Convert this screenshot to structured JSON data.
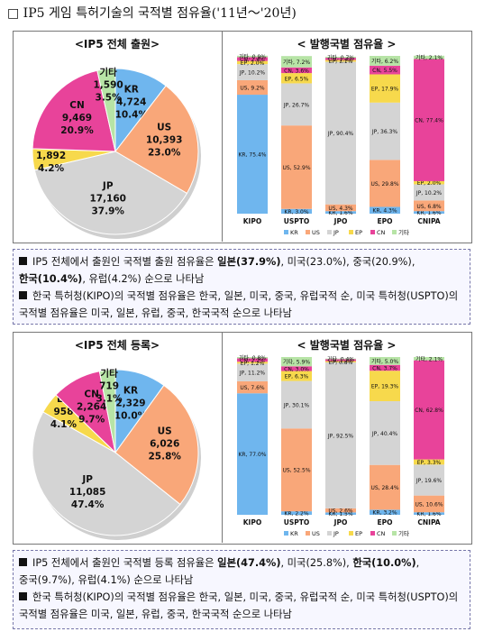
{
  "page_title": "□ IP5 게임 특허기술의 국적별 점유율('11년～'20년)",
  "chart_data": [
    {
      "type": "pie",
      "title": "<IP5 전체 출원>",
      "categories": [
        "KR",
        "US",
        "JP",
        "EP",
        "CN",
        "기타"
      ],
      "values": [
        4724,
        10393,
        17160,
        1892,
        9469,
        1590
      ],
      "percent_labels": [
        "10.4%",
        "23.0%",
        "37.9%",
        "4.2%",
        "20.9%",
        "3.5%"
      ],
      "value_labels": [
        "4,724",
        "10,393",
        "17,160",
        "1,892",
        "9,469",
        "1,590"
      ],
      "colors": [
        "#6fb6ee",
        "#f9a779",
        "#d4d4d4",
        "#f7d94c",
        "#e8439a",
        "#b7e4a6"
      ]
    },
    {
      "type": "bar",
      "stacked": true,
      "title": "< 발행국별 점유율 >",
      "categories": [
        "KIPO",
        "USPTO",
        "JPO",
        "EPO",
        "CNIPA"
      ],
      "series": [
        {
          "name": "KR",
          "values": [
            75.4,
            3.0,
            1.6,
            4.3,
            1.6
          ]
        },
        {
          "name": "US",
          "values": [
            9.2,
            52.9,
            4.3,
            29.8,
            6.8
          ]
        },
        {
          "name": "JP",
          "values": [
            10.2,
            26.7,
            90.4,
            36.3,
            10.2
          ]
        },
        {
          "name": "EP",
          "values": [
            2.0,
            6.5,
            1.1,
            17.9,
            2.0
          ]
        },
        {
          "name": "CN",
          "values": [
            2.4,
            3.6,
            1.4,
            5.5,
            77.4
          ]
        },
        {
          "name": "기타",
          "values": [
            0.9,
            7.2,
            0.7,
            6.2,
            2.1
          ]
        }
      ],
      "bar_labels": [
        [
          "KR, 75.4%",
          "US, 9.2%",
          "JP, 10.2%",
          "EP, 2.0%",
          "CN, 2.4%",
          "기타, 0.9%"
        ],
        [
          "KR, 3.0%",
          "US, 52.9%",
          "JP, 26.7%",
          "EP, 6.5%",
          "CN, 3.6%",
          "기타, 7.2%"
        ],
        [
          "KR, 1.6%",
          "US, 4.3%",
          "JP, 90.4%",
          "EP, 1.1%",
          "CN, 1.4%",
          "기타, 0.7%"
        ],
        [
          "KR, 4.3%",
          "US, 29.8%",
          "JP, 36.3%",
          "EP, 17.9%",
          "CN, 5.5%",
          "기타, 6.2%"
        ],
        [
          "KR, 1.6%",
          "US, 6.8%",
          "JP, 10.2%",
          "EP, 2.0%",
          "CN, 77.4%",
          "기타, 2.1%"
        ]
      ],
      "legend": [
        "KR",
        "US",
        "JP",
        "EP",
        "CN",
        "기타"
      ],
      "legend_position": "bottom",
      "colors": [
        "#6fb6ee",
        "#f9a779",
        "#d4d4d4",
        "#f7d94c",
        "#e8439a",
        "#b7e4a6"
      ]
    },
    {
      "type": "pie",
      "title": "<IP5 전체 등록>",
      "categories": [
        "KR",
        "US",
        "JP",
        "EP",
        "CN",
        "기타"
      ],
      "values": [
        2329,
        6026,
        11085,
        958,
        2264,
        719
      ],
      "percent_labels": [
        "10.0%",
        "25.8%",
        "47.4%",
        "4.1%",
        "9.7%",
        "3.1%"
      ],
      "value_labels": [
        "2,329",
        "6,026",
        "11,085",
        "958",
        "2,264",
        "719"
      ],
      "colors": [
        "#6fb6ee",
        "#f9a779",
        "#d4d4d4",
        "#f7d94c",
        "#e8439a",
        "#b7e4a6"
      ]
    },
    {
      "type": "bar",
      "stacked": true,
      "title": "< 발행국별 점유율 >",
      "categories": [
        "KIPO",
        "USPTO",
        "JPO",
        "EPO",
        "CNIPA"
      ],
      "series": [
        {
          "name": "KR",
          "values": [
            77.0,
            2.2,
            1.5,
            3.2,
            1.6
          ]
        },
        {
          "name": "US",
          "values": [
            7.6,
            52.5,
            2.6,
            28.4,
            10.6
          ]
        },
        {
          "name": "JP",
          "values": [
            11.2,
            30.1,
            92.5,
            40.4,
            19.6
          ]
        },
        {
          "name": "EP",
          "values": [
            1.2,
            6.3,
            0.8,
            19.3,
            3.3
          ]
        },
        {
          "name": "CN",
          "values": [
            2.2,
            3.0,
            1.2,
            3.7,
            62.8
          ]
        },
        {
          "name": "기타",
          "values": [
            0.8,
            5.9,
            0.4,
            5.0,
            2.1
          ]
        }
      ],
      "bar_labels": [
        [
          "KR, 77.0%",
          "US, 7.6%",
          "JP, 11.2%",
          "EP, 1.2%",
          "CN, 2.2%",
          "기타, 0.8%"
        ],
        [
          "KR, 2.2%",
          "US, 52.5%",
          "JP, 30.1%",
          "EP, 6.3%",
          "CN, 3.0%",
          "기타, 5.9%"
        ],
        [
          "KR, 1.5%",
          "US, 2.6%",
          "JP, 92.5%",
          "EP, 0.8%",
          "CN, 1.2%",
          "기타, 0.4%"
        ],
        [
          "KR, 3.2%",
          "US, 28.4%",
          "JP, 40.4%",
          "EP, 19.3%",
          "CN, 3.7%",
          "기타, 5.0%"
        ],
        [
          "KR, 1.6%",
          "US, 10.6%",
          "JP, 19.6%",
          "EP, 3.3%",
          "CN, 62.8%",
          "기타, 2.1%"
        ]
      ],
      "legend": [
        "KR",
        "US",
        "JP",
        "EP",
        "CN",
        "기타"
      ],
      "legend_position": "bottom",
      "colors": [
        "#6fb6ee",
        "#f9a779",
        "#d4d4d4",
        "#f7d94c",
        "#e8439a",
        "#b7e4a6"
      ]
    }
  ],
  "notes": {
    "n1": {
      "a": "IP5 전체에서 출원인 국적별 출원 점유율은 ",
      "b1": "일본(37.9%)",
      "c": ", 미국(23.0%), 중국(20.9%),",
      "b2": "한국(10.4%)",
      "d": ", 유럽(4.2%) 순으로 나타남"
    },
    "n2": "한국 특허청(KIPO)의 국적별 점유율은 한국, 일본, 미국, 중국, 유럽국적 순, 미국 특허청(USPTO)의 국적별 점유율은 미국, 일본, 유럽, 중국, 한국국적 순으로 나타남",
    "n3": {
      "a": "IP5 전체에서 출원인 국적별 등록 점유율은 ",
      "b1": "일본(47.4%)",
      "c": ", 미국(25.8%), ",
      "b2": "한국(10.0%)",
      "d": ",",
      "e": "중국(9.7%), 유럽(4.1%) 순으로 나타남"
    },
    "n4": "한국 특허청(KIPO)의 국적별 점유율은 한국, 일본, 미국, 중국, 유럽국적 순, 미국 특허청(USPTO)의 국적별 점유율은 미국, 일본, 유럽, 중국, 한국국적 순으로 나타남"
  }
}
